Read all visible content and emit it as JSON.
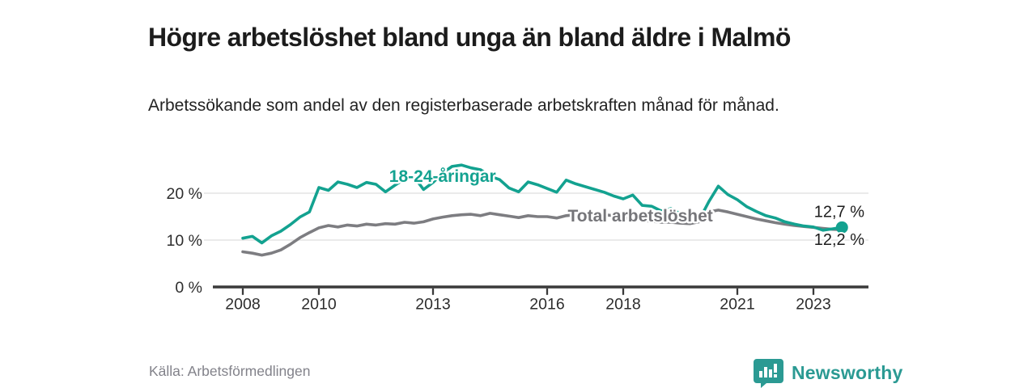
{
  "header": {
    "title": "Högre arbetslöshet bland unga än bland äldre i Malmö",
    "subtitle": "Arbetssökande som andel av den registerbaserade arbetskraften månad för månad."
  },
  "chart_data": {
    "type": "line",
    "title": "Högre arbetslöshet bland unga än bland äldre i Malmö",
    "xlabel": "",
    "ylabel": "",
    "grid": "horizontal",
    "legend": "inline-labels",
    "x_start": 2008,
    "x_step": 0.25,
    "xlim": [
      2007.2,
      2024.45
    ],
    "ylim": [
      0,
      29
    ],
    "x_ticks": [
      {
        "value": 2008,
        "label": "2008"
      },
      {
        "value": 2010,
        "label": "2010"
      },
      {
        "value": 2013,
        "label": "2013"
      },
      {
        "value": 2016,
        "label": "2016"
      },
      {
        "value": 2018,
        "label": "2018"
      },
      {
        "value": 2021,
        "label": "2021"
      },
      {
        "value": 2023,
        "label": "2023"
      }
    ],
    "y_ticks": [
      {
        "value": 0,
        "label": "0 %"
      },
      {
        "value": 10,
        "label": "10 %"
      },
      {
        "value": 20,
        "label": "20 %"
      }
    ],
    "series": [
      {
        "name": "Total arbetslöshet",
        "color": "#7d7d81",
        "label_color": "#757579",
        "label_pos": {
          "x": 2018.45,
          "y": 15.2
        },
        "end_label": "12,2 %",
        "end_label_side": "below",
        "end_dot": false,
        "values": [
          7.5,
          7.2,
          6.8,
          7.2,
          7.9,
          9.1,
          10.5,
          11.6,
          12.6,
          13.1,
          12.8,
          13.2,
          13.0,
          13.4,
          13.2,
          13.5,
          13.4,
          13.8,
          13.6,
          13.9,
          14.5,
          14.9,
          15.2,
          15.4,
          15.5,
          15.2,
          15.7,
          15.4,
          15.1,
          14.8,
          15.2,
          15.0,
          15.0,
          14.7,
          15.2,
          15.4,
          15.2,
          15.3,
          15.4,
          15.2,
          14.8,
          14.5,
          14.2,
          14.0,
          13.8,
          13.8,
          13.6,
          13.5,
          13.9,
          16.0,
          16.4,
          16.0,
          15.5,
          15.0,
          14.5,
          14.1,
          13.7,
          13.4,
          13.1,
          12.9,
          12.7,
          12.5,
          12.3,
          12.2
        ]
      },
      {
        "name": "18-24-åringar",
        "color": "#13a290",
        "label_color": "#13a290",
        "label_pos": {
          "x": 2013.25,
          "y": 23.6
        },
        "end_label": "12,7 %",
        "end_label_side": "above",
        "end_dot": true,
        "values": [
          10.4,
          10.8,
          9.4,
          10.9,
          11.9,
          13.3,
          14.9,
          16.0,
          21.2,
          20.6,
          22.4,
          21.9,
          21.2,
          22.3,
          21.9,
          20.3,
          21.7,
          23.0,
          23.5,
          20.8,
          22.3,
          24.3,
          25.7,
          26.0,
          25.4,
          25.0,
          23.6,
          22.9,
          21.1,
          20.3,
          22.4,
          21.8,
          21.0,
          20.2,
          22.8,
          22.0,
          21.4,
          20.8,
          20.2,
          19.4,
          18.8,
          19.6,
          17.4,
          17.2,
          16.2,
          16.7,
          15.6,
          14.9,
          14.3,
          18.2,
          21.5,
          19.7,
          18.6,
          17.1,
          16.1,
          15.2,
          14.7,
          13.9,
          13.4,
          13.0,
          12.8,
          12.1,
          12.4,
          12.7
        ]
      }
    ],
    "colors": {
      "axis": "#3a3a3a",
      "grid": "#dedede",
      "tick_text": "#2d2d2d",
      "end_label_text": "#1c1c1c"
    }
  },
  "footer": {
    "source": "Källa: Arbetsförmedlingen",
    "brand": {
      "name": "Newsworthy",
      "icon": "newsworthy-speech-bubble-bars-icon",
      "color": "#2b9a93"
    }
  }
}
